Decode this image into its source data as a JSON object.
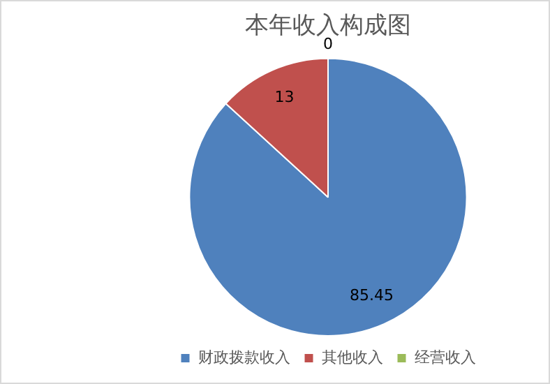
{
  "chart_data": {
    "type": "pie",
    "title": "本年收入构成图",
    "categories": [
      "财政拨款收入",
      "其他收入",
      "经营收入"
    ],
    "values": [
      85.45,
      13,
      0
    ],
    "colors": [
      "#4f81bd",
      "#c0504d",
      "#9bbb59"
    ],
    "value_labels": [
      "85.45",
      "13",
      "0"
    ],
    "legend": "bottom"
  }
}
